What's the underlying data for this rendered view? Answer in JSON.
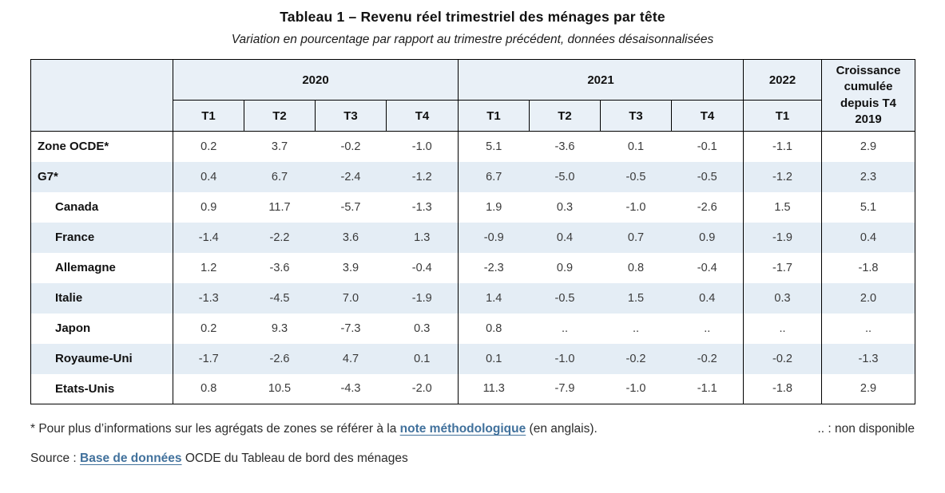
{
  "title": "Tableau 1 – Revenu réel trimestriel des ménages par tête",
  "subtitle": "Variation en pourcentage par rapport au trimestre précédent, données désaisonnalisées",
  "chart_data": {
    "type": "table",
    "title": "Tableau 1 – Revenu réel trimestriel des ménages par tête",
    "subtitle": "Variation en pourcentage par rapport au trimestre précédent, données désaisonnalisées",
    "col_groups": [
      {
        "label": "2020",
        "cols": [
          "T1",
          "T2",
          "T3",
          "T4"
        ]
      },
      {
        "label": "2021",
        "cols": [
          "T1",
          "T2",
          "T3",
          "T4"
        ]
      },
      {
        "label": "2022",
        "cols": [
          "T1"
        ]
      }
    ],
    "growth_label": "Croissance cumulée depuis T4 2019",
    "columns_flat": [
      "2020 T1",
      "2020 T2",
      "2020 T3",
      "2020 T4",
      "2021 T1",
      "2021 T2",
      "2021 T3",
      "2021 T4",
      "2022 T1",
      "Croissance cumulée depuis T4 2019"
    ],
    "rows": [
      {
        "label": "Zone OCDE*",
        "indent": false,
        "values": [
          "0.2",
          "3.7",
          "-0.2",
          "-1.0",
          "5.1",
          "-3.6",
          "0.1",
          "-0.1",
          "-1.1",
          "2.9"
        ]
      },
      {
        "label": "G7*",
        "indent": false,
        "values": [
          "0.4",
          "6.7",
          "-2.4",
          "-1.2",
          "6.7",
          "-5.0",
          "-0.5",
          "-0.5",
          "-1.2",
          "2.3"
        ]
      },
      {
        "label": "Canada",
        "indent": true,
        "values": [
          "0.9",
          "11.7",
          "-5.7",
          "-1.3",
          "1.9",
          "0.3",
          "-1.0",
          "-2.6",
          "1.5",
          "5.1"
        ]
      },
      {
        "label": "France",
        "indent": true,
        "values": [
          "-1.4",
          "-2.2",
          "3.6",
          "1.3",
          "-0.9",
          "0.4",
          "0.7",
          "0.9",
          "-1.9",
          "0.4"
        ]
      },
      {
        "label": "Allemagne",
        "indent": true,
        "values": [
          "1.2",
          "-3.6",
          "3.9",
          "-0.4",
          "-2.3",
          "0.9",
          "0.8",
          "-0.4",
          "-1.7",
          "-1.8"
        ]
      },
      {
        "label": "Italie",
        "indent": true,
        "values": [
          "-1.3",
          "-4.5",
          "7.0",
          "-1.9",
          "1.4",
          "-0.5",
          "1.5",
          "0.4",
          "0.3",
          "2.0"
        ]
      },
      {
        "label": "Japon",
        "indent": true,
        "values": [
          "0.2",
          "9.3",
          "-7.3",
          "0.3",
          "0.8",
          "..",
          "..",
          "..",
          "..",
          ".."
        ]
      },
      {
        "label": "Royaume-Uni",
        "indent": true,
        "values": [
          "-1.7",
          "-2.6",
          "4.7",
          "0.1",
          "0.1",
          "-1.0",
          "-0.2",
          "-0.2",
          "-0.2",
          "-1.3"
        ]
      },
      {
        "label": "Etats-Unis",
        "indent": true,
        "values": [
          "0.8",
          "10.5",
          "-4.3",
          "-2.0",
          "11.3",
          "-7.9",
          "-1.0",
          "-1.1",
          "-1.8",
          "2.9"
        ]
      }
    ]
  },
  "footnote": {
    "prefix": "* Pour plus d’informations sur les agrégats de zones se référer à la ",
    "link": "note méthodologique",
    "suffix": " (en anglais).",
    "right": ".. : non disponible"
  },
  "source": {
    "prefix": "Source : ",
    "link": "Base de données",
    "suffix": " OCDE du Tableau de bord des ménages"
  },
  "colors": {
    "header_bg": "#e9f0f7",
    "row_alt_bg": "#e4edf5",
    "border": "#000000",
    "link": "#41719c"
  }
}
